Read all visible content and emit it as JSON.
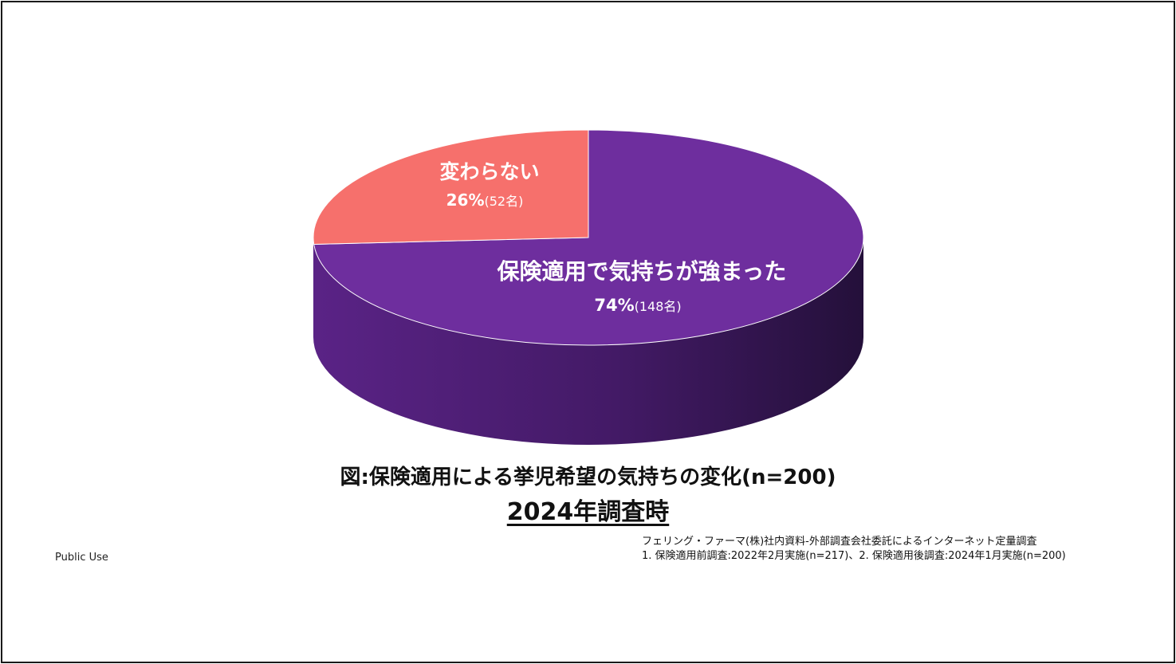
{
  "chart_data": {
    "type": "pie",
    "title": "図:保険適用による挙児希望の気持ちの変化(n=200)",
    "subtitle": "2024年調査時",
    "slices": [
      {
        "label": "保険適用で気持ちが強まった",
        "percent": 74,
        "percent_text": "74%",
        "count_text": "(148名)",
        "color": "#6E2E9E",
        "side_color": "#4A1D6F"
      },
      {
        "label": "変わらない",
        "percent": 26,
        "percent_text": "26%",
        "count_text": "(52名)",
        "color": "#F6706C",
        "side_color": "#C55250"
      }
    ],
    "total": 200
  },
  "footer": {
    "source_line1": "フェリング・ファーマ(株)社内資料-外部調査会社委託によるインターネット定量調査",
    "source_line2": "1. 保険適用前調査:2022年2月実施(n=217)、2. 保険適用後調査:2024年1月実施(n=200)",
    "classification": "Public Use"
  }
}
